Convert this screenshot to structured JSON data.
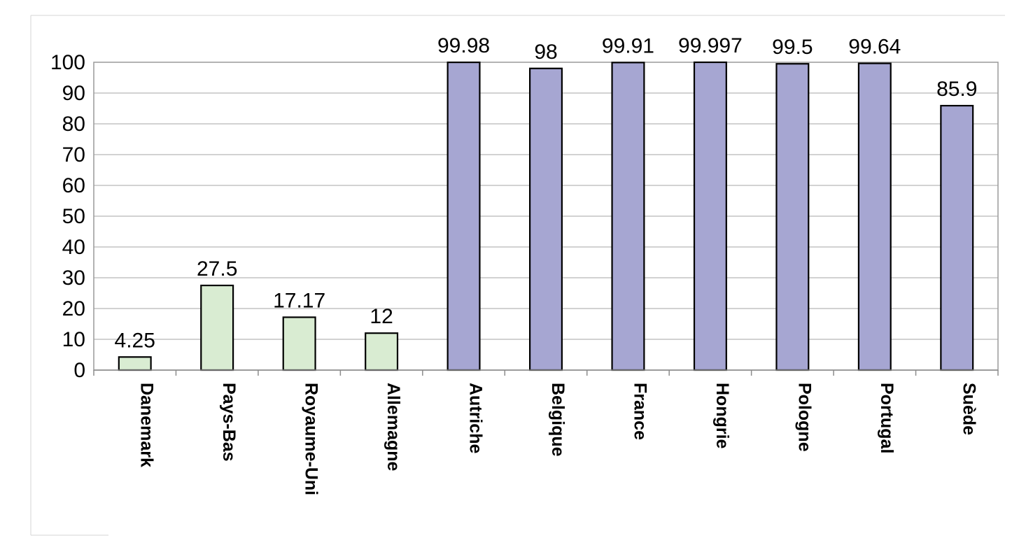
{
  "chart_data": {
    "type": "bar",
    "title": "",
    "xlabel": "",
    "ylabel": "",
    "ylim": [
      0,
      100
    ],
    "yticks": [
      0,
      10,
      20,
      30,
      40,
      50,
      60,
      70,
      80,
      90,
      100
    ],
    "grid": true,
    "legend": "none",
    "categories": [
      "Danemark",
      "Pays-Bas",
      "Royaume-Uni",
      "Allemagne",
      "Autriche",
      "Belgique",
      "France",
      "Hongrie",
      "Pologne",
      "Portugal",
      "Suède"
    ],
    "values": [
      4.25,
      27.5,
      17.17,
      12,
      99.98,
      98,
      99.91,
      99.997,
      99.5,
      99.64,
      85.9
    ],
    "value_labels": [
      "4.25",
      "27.5",
      "17.17",
      "12",
      "99.98",
      "98",
      "99.91",
      "99.997",
      "99.5",
      "99.64",
      "85.9"
    ],
    "bar_colors": [
      "#d9ecd2",
      "#d9ecd2",
      "#d9ecd2",
      "#d9ecd2",
      "#a6a6d2",
      "#a6a6d2",
      "#a6a6d2",
      "#a6a6d2",
      "#a6a6d2",
      "#a6a6d2",
      "#a6a6d2"
    ]
  }
}
